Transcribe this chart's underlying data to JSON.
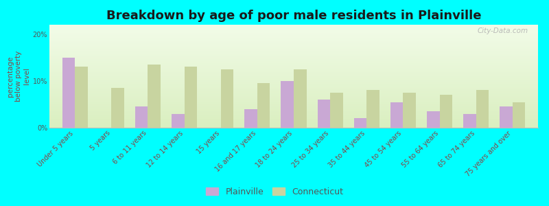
{
  "title": "Breakdown by age of poor male residents in Plainville",
  "ylabel": "percentage\nbelow poverty\nlevel",
  "categories": [
    "Under 5 years",
    "5 years",
    "6 to 11 years",
    "12 to 14 years",
    "15 years",
    "16 and 17 years",
    "18 to 24 years",
    "25 to 34 years",
    "35 to 44 years",
    "45 to 54 years",
    "55 to 64 years",
    "65 to 74 years",
    "75 years and over"
  ],
  "plainville": [
    15.0,
    0.0,
    4.5,
    3.0,
    0.0,
    4.0,
    10.0,
    6.0,
    2.0,
    5.5,
    3.5,
    3.0,
    4.5
  ],
  "connecticut": [
    13.0,
    8.5,
    13.5,
    13.0,
    12.5,
    9.5,
    12.5,
    7.5,
    8.0,
    7.5,
    7.0,
    8.0,
    5.5
  ],
  "plainville_color": "#c9a8d4",
  "connecticut_color": "#c8d4a0",
  "background_color": "#e4f0d0",
  "outer_bg": "#00ffff",
  "ylim": [
    0,
    22
  ],
  "yticks": [
    0,
    10,
    20
  ],
  "ytick_labels": [
    "0%",
    "10%",
    "20%"
  ],
  "bar_width": 0.35,
  "title_fontsize": 13,
  "ylabel_fontsize": 7.5,
  "tick_fontsize": 7,
  "legend_fontsize": 9
}
